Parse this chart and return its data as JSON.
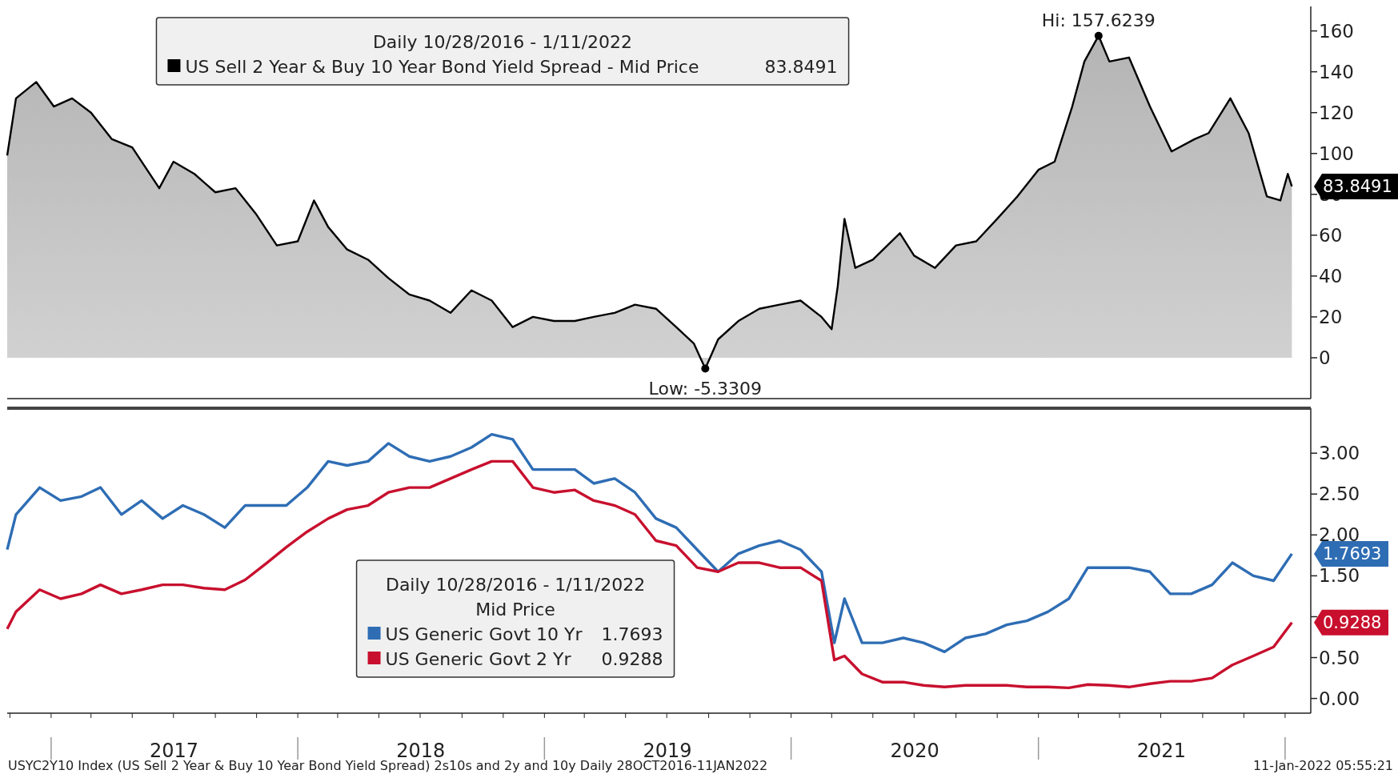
{
  "chart_data": [
    {
      "type": "area",
      "legend": "top",
      "legend_title": "Daily 10/28/2016 - 1/11/2022",
      "tick_labels": "y",
      "xlim": [
        "2016-10-28",
        "2022-02-08"
      ],
      "ylim": [
        -20,
        172
      ],
      "yticks": [
        0,
        20,
        40,
        60,
        80,
        100,
        120,
        140,
        160
      ],
      "x": [
        "2016-10-28",
        "2016-11-10",
        "2016-12-10",
        "2017-01-05",
        "2017-02-01",
        "2017-03-01",
        "2017-04-01",
        "2017-05-01",
        "2017-06-10",
        "2017-07-01",
        "2017-08-01",
        "2017-09-01",
        "2017-10-01",
        "2017-11-01",
        "2017-12-01",
        "2018-01-01",
        "2018-01-25",
        "2018-02-15",
        "2018-03-15",
        "2018-04-15",
        "2018-05-15",
        "2018-06-15",
        "2018-07-15",
        "2018-08-15",
        "2018-09-15",
        "2018-10-15",
        "2018-11-15",
        "2018-12-15",
        "2019-01-15",
        "2019-02-15",
        "2019-03-15",
        "2019-04-15",
        "2019-05-15",
        "2019-06-15",
        "2019-07-15",
        "2019-08-10",
        "2019-08-27",
        "2019-09-15",
        "2019-10-15",
        "2019-11-15",
        "2019-12-15",
        "2020-01-15",
        "2020-02-15",
        "2020-03-01",
        "2020-03-10",
        "2020-03-20",
        "2020-04-05",
        "2020-05-01",
        "2020-06-10",
        "2020-07-01",
        "2020-08-01",
        "2020-09-01",
        "2020-10-01",
        "2020-11-01",
        "2020-12-01",
        "2021-01-01",
        "2021-01-25",
        "2021-02-20",
        "2021-03-10",
        "2021-03-31",
        "2021-04-16",
        "2021-05-15",
        "2021-06-15",
        "2021-07-17",
        "2021-08-20",
        "2021-09-10",
        "2021-10-12",
        "2021-11-08",
        "2021-12-05",
        "2021-12-25",
        "2022-01-05",
        "2022-01-11"
      ],
      "series": [
        {
          "name": "US Sell 2 Year & Buy 10 Year Bond Yield Spread - Mid Price",
          "color": "#000000",
          "values": [
            99,
            127,
            135,
            123,
            127,
            120,
            107,
            103,
            83,
            96,
            90,
            81,
            83,
            70,
            55,
            57,
            77,
            64,
            53,
            48,
            39,
            31,
            28,
            22,
            33,
            28,
            15,
            20,
            18,
            18,
            20,
            22,
            26,
            24,
            15,
            7,
            -5.3309,
            9,
            18,
            24,
            26,
            28,
            20,
            14,
            35,
            68,
            44,
            48,
            61,
            50,
            44,
            55,
            57,
            68,
            79,
            92,
            96,
            123,
            145,
            157.6239,
            145,
            147,
            123,
            101,
            107,
            110,
            127,
            110,
            79,
            77,
            90,
            83.8491
          ],
          "value_labels": [
            null,
            null,
            null,
            null,
            null,
            null,
            null,
            null,
            null,
            null,
            null,
            null,
            null,
            null,
            null,
            null,
            null,
            null,
            null,
            null,
            null,
            null,
            null,
            null,
            null,
            null,
            null,
            null,
            null,
            null,
            null,
            null,
            null,
            null,
            null,
            null,
            null,
            null,
            null,
            null,
            null,
            null,
            null,
            null,
            null,
            null,
            null,
            null,
            null,
            null,
            null,
            null,
            null,
            null,
            null,
            null,
            null,
            null,
            null,
            null,
            null,
            null,
            null,
            null,
            null,
            null,
            null,
            null,
            null,
            null,
            null,
            "83.8491"
          ]
        }
      ],
      "annotations": [
        {
          "text": "Hi: 157.6239",
          "x": "2021-03-31",
          "y": 157.6239
        },
        {
          "text": "Low: -5.3309",
          "x": "2019-08-27",
          "y": -5.3309
        }
      ]
    },
    {
      "type": "line",
      "legend": "bottom left",
      "legend_title": "Daily 10/28/2016 - 1/11/2022\nMid Price",
      "xlim": [
        "2016-10-28",
        "2022-02-08"
      ],
      "ylim": [
        -0.18,
        3.55
      ],
      "yticks": [
        {
          "value": 0,
          "label": "0.00"
        },
        {
          "value": 0.5,
          "label": "0.50"
        },
        {
          "value": 1,
          "label": null
        },
        {
          "value": 1.5,
          "label": "1.50"
        },
        {
          "value": 2,
          "label": "2.00"
        },
        {
          "value": 2.5,
          "label": "2.50"
        },
        {
          "value": 3,
          "label": "3.00"
        }
      ],
      "xticks": [
        {
          "value": "2017-01-01",
          "label": null
        },
        {
          "value": "2017-07-02",
          "label": "2017"
        },
        {
          "value": "2018-01-01",
          "label": null
        },
        {
          "value": "2018-07-02",
          "label": "2018"
        },
        {
          "value": "2019-01-01",
          "label": null
        },
        {
          "value": "2019-07-02",
          "label": "2019"
        },
        {
          "value": "2020-01-01",
          "label": null
        },
        {
          "value": "2020-07-02",
          "label": "2020"
        },
        {
          "value": "2021-01-01",
          "label": null
        },
        {
          "value": "2021-07-02",
          "label": "2021"
        },
        {
          "value": "2022-01-01",
          "label": null
        }
      ],
      "x": [
        "2016-10-28",
        "2016-11-10",
        "2016-12-15",
        "2017-01-15",
        "2017-02-15",
        "2017-03-15",
        "2017-04-15",
        "2017-05-15",
        "2017-06-15",
        "2017-07-15",
        "2017-08-15",
        "2017-09-15",
        "2017-10-15",
        "2017-11-15",
        "2017-12-15",
        "2018-01-15",
        "2018-02-15",
        "2018-03-15",
        "2018-04-15",
        "2018-05-15",
        "2018-06-15",
        "2018-07-15",
        "2018-08-15",
        "2018-09-15",
        "2018-10-15",
        "2018-11-15",
        "2018-12-15",
        "2019-01-15",
        "2019-02-15",
        "2019-03-15",
        "2019-04-15",
        "2019-05-15",
        "2019-06-15",
        "2019-07-15",
        "2019-08-15",
        "2019-09-15",
        "2019-10-15",
        "2019-11-15",
        "2019-12-15",
        "2020-01-15",
        "2020-02-15",
        "2020-03-05",
        "2020-03-20",
        "2020-04-15",
        "2020-05-15",
        "2020-06-15",
        "2020-07-15",
        "2020-08-15",
        "2020-09-15",
        "2020-10-15",
        "2020-11-15",
        "2020-12-15",
        "2021-01-15",
        "2021-02-15",
        "2021-03-15",
        "2021-04-15",
        "2021-05-15",
        "2021-06-15",
        "2021-07-15",
        "2021-08-15",
        "2021-09-15",
        "2021-10-15",
        "2021-11-15",
        "2021-12-15",
        "2022-01-11"
      ],
      "series": [
        {
          "name": "US Generic Govt 10 Yr",
          "color": "#2e6db4",
          "values": [
            1.82,
            2.25,
            2.58,
            2.42,
            2.47,
            2.58,
            2.25,
            2.42,
            2.2,
            2.36,
            2.25,
            2.09,
            2.36,
            2.36,
            2.36,
            2.58,
            2.9,
            2.85,
            2.9,
            3.12,
            2.96,
            2.9,
            2.96,
            3.07,
            3.23,
            3.17,
            2.8,
            2.8,
            2.8,
            2.63,
            2.69,
            2.52,
            2.2,
            2.09,
            1.82,
            1.55,
            1.77,
            1.87,
            1.93,
            1.82,
            1.55,
            0.68,
            1.22,
            0.68,
            0.68,
            0.74,
            0.68,
            0.57,
            0.74,
            0.79,
            0.9,
            0.95,
            1.06,
            1.22,
            1.6,
            1.6,
            1.6,
            1.55,
            1.28,
            1.28,
            1.39,
            1.66,
            1.5,
            1.44,
            1.7693
          ],
          "value_labels": [
            null,
            null,
            null,
            null,
            null,
            null,
            null,
            null,
            null,
            null,
            null,
            null,
            null,
            null,
            null,
            null,
            null,
            null,
            null,
            null,
            null,
            null,
            null,
            null,
            null,
            null,
            null,
            null,
            null,
            null,
            null,
            null,
            null,
            null,
            null,
            null,
            null,
            null,
            null,
            null,
            null,
            null,
            null,
            null,
            null,
            null,
            null,
            null,
            null,
            null,
            null,
            null,
            null,
            null,
            null,
            null,
            null,
            null,
            null,
            null,
            null,
            null,
            null,
            null,
            "1.7693"
          ]
        },
        {
          "name": "US Generic Govt 2 Yr",
          "color": "#c8102e",
          "values": [
            0.85,
            1.06,
            1.33,
            1.22,
            1.28,
            1.39,
            1.28,
            1.33,
            1.39,
            1.39,
            1.35,
            1.33,
            1.45,
            1.65,
            1.85,
            2.04,
            2.2,
            2.31,
            2.36,
            2.52,
            2.58,
            2.58,
            2.69,
            2.8,
            2.9,
            2.9,
            2.58,
            2.52,
            2.55,
            2.42,
            2.36,
            2.25,
            1.93,
            1.87,
            1.6,
            1.55,
            1.66,
            1.66,
            1.6,
            1.6,
            1.44,
            0.47,
            0.52,
            0.3,
            0.2,
            0.2,
            0.16,
            0.14,
            0.16,
            0.16,
            0.16,
            0.14,
            0.14,
            0.13,
            0.17,
            0.16,
            0.14,
            0.18,
            0.21,
            0.21,
            0.25,
            0.41,
            0.52,
            0.63,
            0.9288
          ],
          "value_labels": [
            null,
            null,
            null,
            null,
            null,
            null,
            null,
            null,
            null,
            null,
            null,
            null,
            null,
            null,
            null,
            null,
            null,
            null,
            null,
            null,
            null,
            null,
            null,
            null,
            null,
            null,
            null,
            null,
            null,
            null,
            null,
            null,
            null,
            null,
            null,
            null,
            null,
            null,
            null,
            null,
            null,
            null,
            null,
            null,
            null,
            null,
            null,
            null,
            null,
            null,
            null,
            null,
            null,
            null,
            null,
            null,
            null,
            null,
            null,
            null,
            null,
            null,
            null,
            null,
            "0.9288"
          ]
        }
      ],
      "annotations": [
        "USYC2Y10 Index (US Sell 2 Year & Buy 10 Year Bond Yield Spread) 2s10s and 2y and 10y  Daily 28OCT2016-11JAN2022",
        "11-Jan-2022 05:55:21"
      ]
    }
  ]
}
